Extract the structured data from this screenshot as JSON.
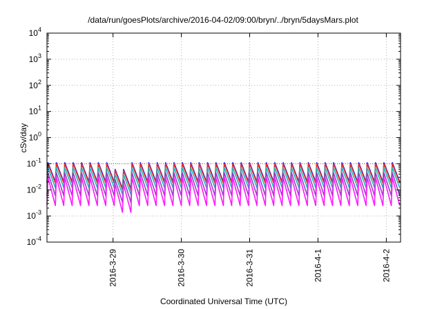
{
  "chart_data": {
    "type": "line",
    "title": "/data/run/goesPlots/archive/2016-04-02/09:00/bryn/../bryn/5daysMars.plot",
    "xlabel": "Coordinated Universal Time (UTC)",
    "ylabel": "cSv/day",
    "yscale": "log",
    "ylim": [
      0.0001,
      10000
    ],
    "y_ticks": [
      {
        "base": "10",
        "exp": "-4"
      },
      {
        "base": "10",
        "exp": "-3"
      },
      {
        "base": "10",
        "exp": "-2"
      },
      {
        "base": "10",
        "exp": "-1"
      },
      {
        "base": "10",
        "exp": "0"
      },
      {
        "base": "10",
        "exp": "1"
      },
      {
        "base": "10",
        "exp": "2"
      },
      {
        "base": "10",
        "exp": "3"
      },
      {
        "base": "10",
        "exp": "4"
      }
    ],
    "xlim": [
      "2016-03-28 00:48",
      "2016-04-02 05:00"
    ],
    "x_ticks": [
      "2016-3-29",
      "2016-3-30",
      "2016-3-31",
      "2016-4-1",
      "2016-4-2"
    ],
    "grid": true,
    "threshold_line": {
      "value": 0.1,
      "color": "#e0302a"
    },
    "sawtooth_period_hours": 2.95,
    "series": [
      {
        "color": "#1c1cff",
        "peak": 0.11,
        "trough": 0.02
      },
      {
        "color": "#e0302a",
        "peak": 0.1,
        "trough": 0.018
      },
      {
        "color": "#20b8b8",
        "peak": 0.07,
        "trough": 0.012
      },
      {
        "color": "#9b3cc8",
        "peak": 0.045,
        "trough": 0.006
      },
      {
        "color": "#ff18ff",
        "peak": 0.03,
        "trough": 0.0025
      }
    ]
  }
}
